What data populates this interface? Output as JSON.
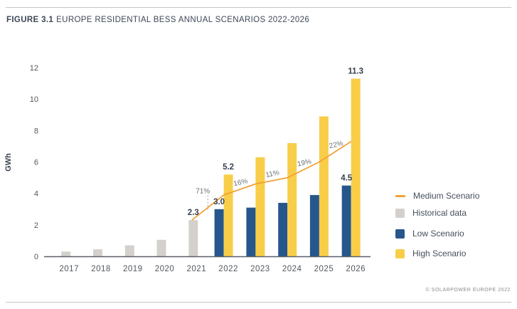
{
  "figure": {
    "label": "FIGURE 3.1",
    "title": "EUROPE RESIDENTIAL BESS ANNUAL SCENARIOS 2022-2026"
  },
  "footer": {
    "credit": "© SOLARPOWER EUROPE 2022"
  },
  "colors": {
    "historical": "#D4D1CD",
    "low": "#26578C",
    "high": "#F8CE49",
    "medium": "#F2A138",
    "axis_line": "#5A6068",
    "tick_text": "#52575D",
    "value_text": "#39424F",
    "percent_text": "#6D7175",
    "title_text": "#3D4757"
  },
  "legend": {
    "position": "right",
    "items": [
      {
        "label": "Medium Scenario",
        "type": "line",
        "color": "#F2A138"
      },
      {
        "label": "Historical data",
        "type": "square",
        "color": "#D4D1CD"
      },
      {
        "label": "Low Scenario",
        "type": "square",
        "color": "#26578C"
      },
      {
        "label": "High Scenario",
        "type": "square",
        "color": "#F8CE49"
      }
    ]
  },
  "chart_data": {
    "type": "bar",
    "title": "EUROPE RESIDENTIAL BESS ANNUAL SCENARIOS 2022-2026",
    "categories": [
      "2017",
      "2018",
      "2019",
      "2020",
      "2021",
      "2022",
      "2023",
      "2024",
      "2025",
      "2026"
    ],
    "xlabel": "",
    "ylabel": "GWh",
    "ylim": [
      0,
      12
    ],
    "yticks": [
      0,
      2,
      4,
      6,
      8,
      10,
      12
    ],
    "grid": false,
    "legend_position": "right",
    "series": [
      {
        "name": "Historical data",
        "kind": "bar",
        "color": "#D4D1CD",
        "values": [
          0.3,
          0.45,
          0.7,
          1.05,
          2.3,
          null,
          null,
          null,
          null,
          null
        ]
      },
      {
        "name": "Low Scenario",
        "kind": "bar",
        "color": "#26578C",
        "values": [
          null,
          null,
          null,
          null,
          null,
          3.0,
          3.1,
          3.4,
          3.9,
          4.5
        ]
      },
      {
        "name": "High Scenario",
        "kind": "bar",
        "color": "#F8CE49",
        "values": [
          null,
          null,
          null,
          null,
          null,
          5.2,
          6.3,
          7.2,
          8.9,
          11.3
        ]
      },
      {
        "name": "Medium Scenario",
        "kind": "line",
        "color": "#F2A138",
        "values": [
          null,
          null,
          null,
          null,
          2.3,
          3.9,
          4.6,
          5.0,
          6.0,
          7.3
        ]
      }
    ],
    "value_labels": [
      {
        "text": "2.3",
        "series": "Historical data",
        "category": "2021"
      },
      {
        "text": "3.0",
        "series": "Low Scenario",
        "category": "2022"
      },
      {
        "text": "5.2",
        "series": "High Scenario",
        "category": "2022"
      },
      {
        "text": "4.5",
        "series": "Low Scenario",
        "category": "2026"
      },
      {
        "text": "11.3",
        "series": "High Scenario",
        "category": "2026"
      }
    ],
    "growth_labels": [
      {
        "text": "71%",
        "from": "2021",
        "to": "2022"
      },
      {
        "text": "16%",
        "from": "2022",
        "to": "2023"
      },
      {
        "text": "11%",
        "from": "2023",
        "to": "2024"
      },
      {
        "text": "19%",
        "from": "2024",
        "to": "2025"
      },
      {
        "text": "22%",
        "from": "2025",
        "to": "2026"
      }
    ]
  }
}
